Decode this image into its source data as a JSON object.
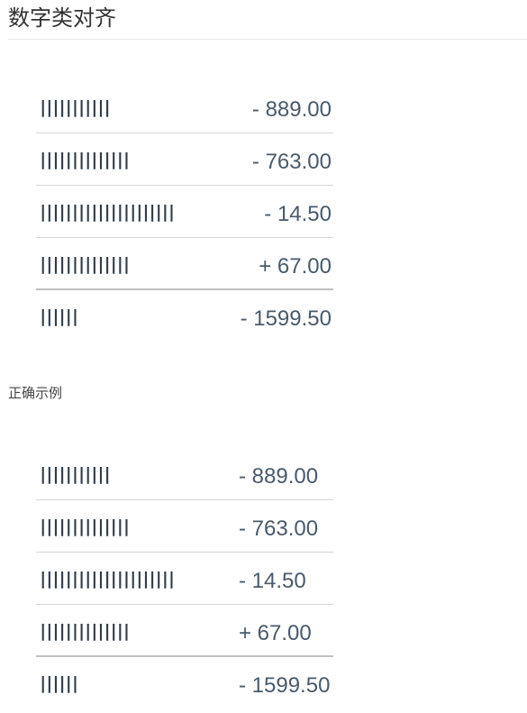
{
  "page": {
    "title": "数字类对齐",
    "caption": "正确示例"
  },
  "tables": [
    {
      "rows": [
        {
          "label": "|||||||||||",
          "amount": "- 889.00"
        },
        {
          "label": "||||||||||||||",
          "amount": "- 763.00"
        },
        {
          "label": "|||||||||||||||||||||",
          "amount": "- 14.50"
        },
        {
          "label": "||||||||||||||",
          "amount": "+ 67.00"
        },
        {
          "label": "||||||",
          "amount": "- 1599.50"
        }
      ]
    },
    {
      "rows": [
        {
          "label": "|||||||||||",
          "amount": "- 889.00"
        },
        {
          "label": "||||||||||||||",
          "amount": "- 763.00"
        },
        {
          "label": "|||||||||||||||||||||",
          "amount": "- 14.50"
        },
        {
          "label": "||||||||||||||",
          "amount": "+ 67.00"
        },
        {
          "label": "||||||",
          "amount": "- 1599.50"
        }
      ]
    }
  ],
  "colors": {
    "text": "#333333",
    "label": "#2f3d4b",
    "amount": "#485a6b",
    "divider": "#d6d6d6"
  }
}
